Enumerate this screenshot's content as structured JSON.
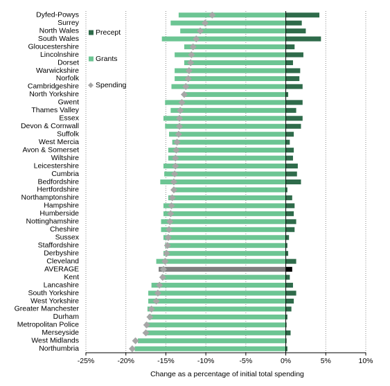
{
  "chart_data": {
    "type": "hbar",
    "xlabel": "Change as a percentage of initial total spending",
    "categories": [
      "Dyfed-Powys",
      "Surrey",
      "North Wales",
      "South Wales",
      "Gloucestershire",
      "Lincolnshire",
      "Dorset",
      "Warwickshire",
      "Norfolk",
      "Cambridgeshire",
      "North Yorkshire",
      "Gwent",
      "Thames Valley",
      "Essex",
      "Devon & Cornwall",
      "Suffolk",
      "West Mercia",
      "Avon & Somerset",
      "Wiltshire",
      "Leicestershire",
      "Cumbria",
      "Bedfordshire",
      "Hertfordshire",
      "Northamptonshire",
      "Hampshire",
      "Humberside",
      "Nottinghamshire",
      "Cheshire",
      "Sussex",
      "Staffordshire",
      "Derbyshire",
      "Cleveland",
      "AVERAGE",
      "Kent",
      "Lancashire",
      "South Yorkshire",
      "West Yorkshire",
      "Greater Manchester",
      "Durham",
      "Metropolitan Police",
      "Merseyside",
      "West Midlands",
      "Northumbria"
    ],
    "series": [
      {
        "name": "Precept",
        "style": "bar",
        "color": "#2e6b4a",
        "highlight_color": "#000000",
        "values": [
          4.2,
          2.0,
          2.5,
          4.4,
          1.1,
          2.2,
          0.9,
          1.8,
          1.7,
          2.1,
          0.3,
          2.1,
          1.3,
          2.1,
          1.9,
          1.0,
          0.5,
          1.0,
          0.9,
          1.5,
          1.4,
          1.9,
          0.2,
          0.8,
          1.1,
          1.0,
          1.3,
          1.1,
          0.4,
          0.2,
          0.3,
          1.3,
          0.8,
          0.5,
          0.9,
          1.3,
          1.0,
          0.7,
          0.2,
          0.1,
          0.6,
          0.1,
          0.2
        ]
      },
      {
        "name": "Grants",
        "style": "bar",
        "color": "#6cc593",
        "highlight_color": "#7f7f7f",
        "values": [
          -13.4,
          -14.4,
          -13.2,
          -15.5,
          -12.7,
          -13.9,
          -12.7,
          -13.9,
          -13.9,
          -14.3,
          -12.7,
          -15.1,
          -14.4,
          -15.3,
          -15.1,
          -14.6,
          -14.2,
          -14.7,
          -14.7,
          -15.3,
          -15.2,
          -15.7,
          -13.9,
          -14.7,
          -15.3,
          -15.3,
          -15.6,
          -15.6,
          -15.3,
          -15.1,
          -15.3,
          -16.2,
          -15.9,
          -15.6,
          -16.8,
          -17.2,
          -17.2,
          -17.3,
          -17.2,
          -17.6,
          -17.5,
          -18.5,
          -18.9
        ]
      },
      {
        "name": "Spending",
        "style": "diamond",
        "color": "#a6a6a6",
        "values": [
          -9.2,
          -10.1,
          -10.7,
          -11.2,
          -11.6,
          -11.8,
          -11.9,
          -12.1,
          -12.2,
          -12.5,
          -12.7,
          -13.0,
          -13.2,
          -13.3,
          -13.3,
          -13.4,
          -13.6,
          -13.7,
          -13.8,
          -13.8,
          -13.9,
          -14.0,
          -14.0,
          -14.2,
          -14.3,
          -14.4,
          -14.5,
          -14.6,
          -14.7,
          -14.8,
          -14.9,
          -15.1,
          -15.3,
          -15.4,
          -15.8,
          -16.0,
          -16.2,
          -16.8,
          -17.0,
          -17.4,
          -17.5,
          -18.8,
          -19.2
        ]
      }
    ],
    "highlight": "AVERAGE",
    "xlim": [
      -25,
      10
    ],
    "xticks": [
      {
        "value": -25,
        "label": "-25%"
      },
      {
        "value": -20,
        "label": "-20%"
      },
      {
        "value": -15,
        "label": "-15%"
      },
      {
        "value": -10,
        "label": "-10%"
      },
      {
        "value": -5,
        "label": "-5%"
      },
      {
        "value": 0,
        "label": "0%"
      },
      {
        "value": 5,
        "label": "5%"
      },
      {
        "value": 10,
        "label": "10%"
      }
    ],
    "grid": true
  }
}
